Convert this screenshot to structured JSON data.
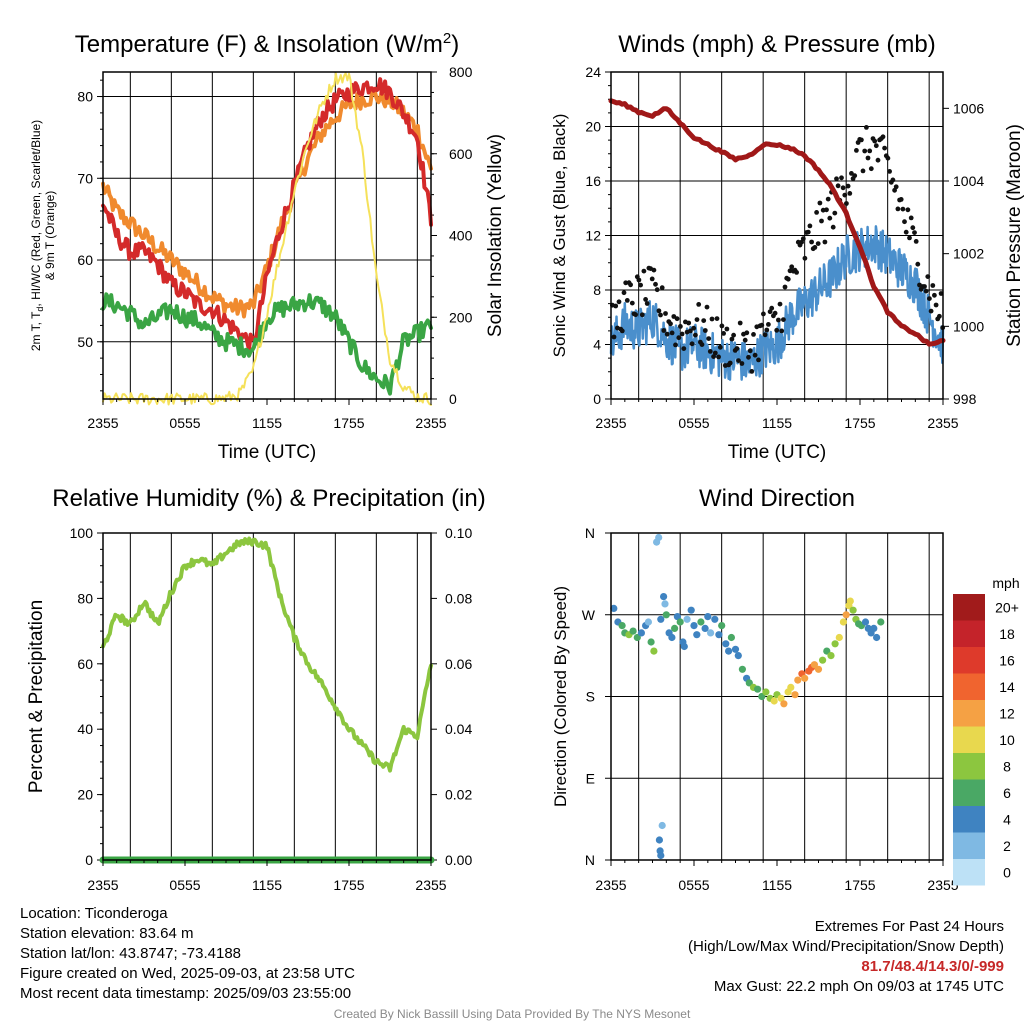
{
  "chart_data": [
    {
      "type": "line",
      "title": "Temperature (F) & Insolation (W/m²)",
      "title_parts": {
        "text": "Temperature (F) & Insolation (W/m",
        "sup": "2",
        "end": ")"
      },
      "xlabel": "Time (UTC)",
      "ylabel_left_lines": [
        "2m T, T",
        "d",
        ", HI/WC (Red, Green, Scarlet/Blue)",
        "& 9m T (Orange)"
      ],
      "ylabel_right": "Solar Insolation (Yellow)",
      "x_ticks": [
        "2355",
        "0555",
        "1155",
        "1755",
        "2355"
      ],
      "x_range_hours": [
        0,
        24
      ],
      "ylim": [
        43,
        83
      ],
      "y_ticks": [
        50,
        60,
        70,
        80
      ],
      "y2lim": [
        0,
        800
      ],
      "y2_ticks": [
        0,
        200,
        400,
        600,
        800
      ],
      "x_hours": [
        0,
        1,
        2,
        3,
        4,
        5,
        6,
        7,
        8,
        9,
        10,
        11,
        12,
        13,
        14,
        15,
        16,
        17,
        18,
        19,
        20,
        21,
        22,
        23,
        24
      ],
      "series": [
        {
          "name": "9m T",
          "axis": "left",
          "color": "#f08a2e",
          "values": [
            69,
            66,
            64.5,
            63,
            61.5,
            60,
            58.5,
            57,
            55.5,
            54.5,
            54,
            54.5,
            59,
            64,
            68.5,
            72.5,
            75.5,
            77.5,
            79,
            79.7,
            80,
            79.5,
            78,
            76,
            71
          ]
        },
        {
          "name": "2m T",
          "axis": "left",
          "color": "#d42a2a",
          "values": [
            67,
            63,
            61,
            61,
            59.5,
            57,
            56,
            54.5,
            54,
            52.5,
            51,
            49.5,
            58,
            64,
            69,
            74,
            77.5,
            79.5,
            80.5,
            81.2,
            81.7,
            80.5,
            78,
            75,
            65
          ]
        },
        {
          "name": "Td",
          "axis": "left",
          "color": "#3aa544",
          "values": [
            55,
            54.5,
            53.5,
            52,
            53,
            54,
            53,
            52.5,
            51,
            50,
            49.5,
            49,
            53,
            54,
            54.5,
            55,
            54.5,
            53,
            50,
            47,
            45.5,
            44.5,
            50,
            51,
            52
          ]
        },
        {
          "name": "Solar Insolation",
          "axis": "right",
          "color": "#f5e15a",
          "values": [
            0,
            0,
            0,
            0,
            0,
            0,
            0,
            0,
            0,
            2,
            12,
            70,
            210,
            360,
            510,
            630,
            720,
            785,
            790,
            600,
            300,
            100,
            30,
            5,
            0
          ]
        }
      ]
    },
    {
      "type": "line",
      "title": "Winds (mph) & Pressure (mb)",
      "xlabel": "Time (UTC)",
      "ylabel_left": "Sonic Wind & Gust (Blue, Black)",
      "ylabel_right": "Station Pressure (Maroon)",
      "x_ticks": [
        "2355",
        "0555",
        "1155",
        "1755",
        "2355"
      ],
      "x_range_hours": [
        0,
        24
      ],
      "ylim": [
        0,
        24
      ],
      "y_ticks": [
        0,
        4,
        8,
        12,
        16,
        20,
        24
      ],
      "y2lim": [
        998,
        1007
      ],
      "y2_ticks": [
        998,
        1000,
        1002,
        1004,
        1006
      ],
      "x_hours": [
        0,
        1,
        2,
        3,
        4,
        5,
        6,
        7,
        8,
        9,
        10,
        11,
        12,
        13,
        14,
        15,
        16,
        17,
        18,
        19,
        20,
        21,
        22,
        23,
        24
      ],
      "series": [
        {
          "name": "Sonic Wind",
          "axis": "left",
          "color": "#4a8fcc",
          "values": [
            4,
            5.5,
            5,
            6,
            4.5,
            3.5,
            4,
            3.5,
            3,
            3,
            2.5,
            3.5,
            4,
            6,
            7,
            8,
            9,
            10.5,
            11,
            11.5,
            10.5,
            9.5,
            8.5,
            6,
            4
          ]
        },
        {
          "name": "Gust",
          "axis": "left",
          "color": "#111111",
          "values": [
            5,
            7,
            7.5,
            8,
            6,
            5,
            5.5,
            5,
            4,
            4,
            3.5,
            5,
            5.5,
            9,
            11,
            12.5,
            14,
            16,
            18,
            18.5,
            17,
            14,
            11,
            8,
            6
          ]
        },
        {
          "name": "Station Pressure",
          "axis": "right",
          "color": "#a01818",
          "values": [
            1006.2,
            1006.1,
            1005.9,
            1005.8,
            1006,
            1005.6,
            1005.2,
            1005,
            1004.8,
            1004.6,
            1004.7,
            1005,
            1005,
            1004.9,
            1004.7,
            1004.3,
            1003.8,
            1003.1,
            1002.2,
            1001.1,
            1000.4,
            1000,
            999.8,
            999.5,
            999.6
          ]
        }
      ]
    },
    {
      "type": "line",
      "title": "Relative Humidity (%) & Precipitation (in)",
      "ylabel_left": "Percent & Precipitation",
      "x_ticks": [
        "2355",
        "0555",
        "1155",
        "1755",
        "2355"
      ],
      "x_range_hours": [
        0,
        24
      ],
      "ylim": [
        0,
        100
      ],
      "y_ticks": [
        0,
        20,
        40,
        60,
        80,
        100
      ],
      "y2lim": [
        0,
        0.1
      ],
      "y2_ticks": [
        "0.00",
        "0.02",
        "0.04",
        "0.06",
        "0.08",
        "0.10"
      ],
      "x_hours": [
        0,
        1,
        2,
        3,
        4,
        5,
        6,
        7,
        8,
        9,
        10,
        11,
        12,
        13,
        14,
        15,
        16,
        17,
        18,
        19,
        20,
        21,
        22,
        23,
        24
      ],
      "series": [
        {
          "name": "Relative Humidity",
          "axis": "left",
          "color": "#8cc63f",
          "values": [
            65,
            75,
            72,
            79,
            72,
            82,
            90,
            92,
            90,
            94,
            97,
            97.5,
            96,
            80,
            68,
            60,
            54,
            47,
            40,
            35,
            30,
            28,
            40,
            38,
            60
          ]
        },
        {
          "name": "Precipitation",
          "axis": "right",
          "color": "#3aa544",
          "values": [
            0,
            0,
            0,
            0,
            0,
            0,
            0,
            0,
            0,
            0,
            0,
            0,
            0,
            0,
            0,
            0,
            0,
            0,
            0,
            0,
            0,
            0,
            0,
            0,
            0
          ]
        }
      ]
    },
    {
      "type": "scatter",
      "title": "Wind Direction",
      "ylabel_left": "Direction (Colored By Speed)",
      "x_ticks": [
        "2355",
        "0555",
        "1155",
        "1755",
        "2355"
      ],
      "x_range_hours": [
        0,
        24
      ],
      "y_ticks": [
        "N",
        "E",
        "S",
        "W",
        "N"
      ],
      "ylim_deg": [
        0,
        360
      ],
      "colorbar": {
        "title": "mph",
        "labels": [
          "20+",
          "18",
          "16",
          "14",
          "12",
          "10",
          "8",
          "6",
          "4",
          "2",
          "0"
        ],
        "colors": [
          "#a11b1b",
          "#c4232a",
          "#de3a2b",
          "#f0642f",
          "#f5a144",
          "#e8d84e",
          "#8cc63f",
          "#4aa865",
          "#3f83c1",
          "#7fb9e3",
          "#bde1f6"
        ]
      },
      "points": [
        [
          0.2,
          277,
          3
        ],
        [
          0.5,
          262,
          4
        ],
        [
          0.8,
          258,
          6
        ],
        [
          1.0,
          250,
          5
        ],
        [
          1.3,
          248,
          7
        ],
        [
          1.6,
          252,
          5
        ],
        [
          1.9,
          245,
          6
        ],
        [
          2.2,
          250,
          4
        ],
        [
          2.5,
          258,
          3
        ],
        [
          2.7,
          262,
          2
        ],
        [
          2.9,
          240,
          6
        ],
        [
          3.1,
          230,
          7
        ],
        [
          3.3,
          350,
          2
        ],
        [
          3.45,
          355,
          1
        ],
        [
          3.6,
          265,
          3
        ],
        [
          3.8,
          290,
          4
        ],
        [
          3.9,
          282,
          2
        ],
        [
          4.0,
          270,
          5
        ],
        [
          4.2,
          250,
          3
        ],
        [
          4.4,
          245,
          4
        ],
        [
          4.6,
          255,
          6
        ],
        [
          4.8,
          268,
          4
        ],
        [
          3.5,
          22,
          3
        ],
        [
          3.55,
          10,
          4
        ],
        [
          3.6,
          5,
          4
        ],
        [
          3.7,
          38,
          2
        ],
        [
          5.0,
          262,
          5
        ],
        [
          5.2,
          240,
          3
        ],
        [
          5.3,
          235,
          4
        ],
        [
          5.5,
          265,
          2
        ],
        [
          5.8,
          275,
          3
        ],
        [
          6.0,
          258,
          4
        ],
        [
          6.2,
          248,
          3
        ],
        [
          6.5,
          262,
          5
        ],
        [
          6.8,
          255,
          3
        ],
        [
          7.0,
          268,
          4
        ],
        [
          7.2,
          250,
          2
        ],
        [
          7.5,
          265,
          3
        ],
        [
          7.8,
          248,
          4
        ],
        [
          8.0,
          258,
          5
        ],
        [
          8.3,
          238,
          4
        ],
        [
          8.5,
          230,
          3
        ],
        [
          8.7,
          245,
          5
        ],
        [
          9.0,
          232,
          3
        ],
        [
          9.2,
          225,
          4
        ],
        [
          9.5,
          210,
          5
        ],
        [
          9.8,
          200,
          4
        ],
        [
          10.0,
          195,
          6
        ],
        [
          10.3,
          190,
          7
        ],
        [
          10.6,
          188,
          5
        ],
        [
          10.9,
          180,
          6
        ],
        [
          11.2,
          185,
          8
        ],
        [
          11.5,
          178,
          7
        ],
        [
          11.8,
          175,
          9
        ],
        [
          12.0,
          182,
          8
        ],
        [
          12.3,
          178,
          10
        ],
        [
          12.5,
          172,
          11
        ],
        [
          12.8,
          185,
          10
        ],
        [
          13.0,
          190,
          9
        ],
        [
          13.3,
          182,
          11
        ],
        [
          13.5,
          198,
          12
        ],
        [
          13.8,
          205,
          13
        ],
        [
          14.0,
          200,
          12
        ],
        [
          14.3,
          208,
          14
        ],
        [
          14.5,
          212,
          13
        ],
        [
          14.7,
          215,
          12
        ],
        [
          15.0,
          210,
          11
        ],
        [
          15.3,
          220,
          8
        ],
        [
          15.6,
          230,
          6
        ],
        [
          15.9,
          225,
          7
        ],
        [
          16.2,
          238,
          8
        ],
        [
          16.5,
          245,
          9
        ],
        [
          16.8,
          262,
          10
        ],
        [
          17.0,
          270,
          11
        ],
        [
          17.2,
          280,
          10
        ],
        [
          17.3,
          285,
          9
        ],
        [
          17.5,
          275,
          8
        ],
        [
          17.7,
          265,
          7
        ],
        [
          17.9,
          260,
          6
        ],
        [
          18.1,
          258,
          5
        ],
        [
          18.4,
          262,
          4
        ],
        [
          18.6,
          255,
          4
        ],
        [
          18.8,
          250,
          3
        ],
        [
          19.0,
          255,
          3
        ],
        [
          19.2,
          245,
          4
        ],
        [
          19.5,
          262,
          5
        ]
      ]
    }
  ],
  "info_left": [
    "Location: Ticonderoga",
    "Station elevation: 83.64 m",
    "Station lat/lon: 43.8747; -73.4188",
    "Figure created on Wed, 2025-09-03, at 23:58 UTC",
    "Most recent data timestamp: 2025/09/03 23:55:00"
  ],
  "extremes": {
    "title": "Extremes For Past 24 Hours",
    "subtitle": "(High/Low/Max Wind/Precipitation/Snow Depth)",
    "values": "81.7/48.4/14.3/0/-999",
    "max_gust": "Max Gust: 22.2 mph On 09/03 at 1745 UTC"
  },
  "credit": "Created By Nick Bassill Using Data Provided By The NYS Mesonet"
}
